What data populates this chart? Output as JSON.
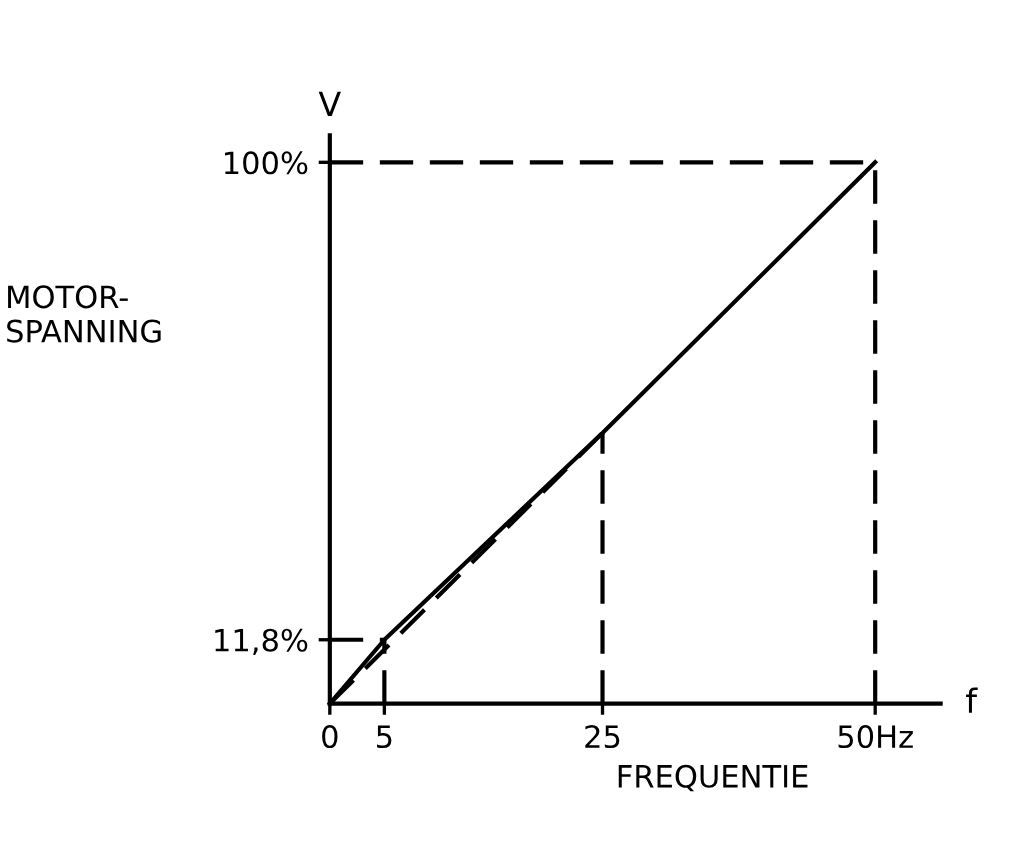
{
  "chart_data": {
    "type": "line",
    "xlabel": "f",
    "ylabel": "V",
    "annotations": [
      "MOTOR-\nSPANNING",
      "FREQUENTIE"
    ],
    "x": [
      0,
      5,
      25,
      50
    ],
    "series": [
      {
        "color": "#000000",
        "values": [
          0,
          11.8,
          50,
          100
        ],
        "line_style": "solid"
      },
      {
        "x": [
          0,
          25
        ],
        "color": "#000000",
        "values": [
          0,
          50
        ],
        "line_style": "dashed"
      },
      {
        "x": [
          5,
          5
        ],
        "color": "#000000",
        "values": [
          0,
          11.8
        ],
        "line_style": "dashed"
      },
      {
        "x": [
          0,
          5
        ],
        "color": "#000000",
        "values": [
          11.8,
          11.8
        ],
        "line_style": "dashed"
      },
      {
        "x": [
          25,
          25
        ],
        "color": "#000000",
        "values": [
          0,
          50
        ],
        "line_style": "dashed"
      },
      {
        "x": [
          0,
          50
        ],
        "color": "#000000",
        "values": [
          100,
          100
        ],
        "line_style": "dashed"
      },
      {
        "x": [
          50,
          50
        ],
        "color": "#000000",
        "values": [
          0,
          100
        ],
        "line_style": "dashed"
      }
    ],
    "xlim": [
      0,
      56
    ],
    "ylim": [
      0,
      105
    ],
    "xticks": [
      0,
      5,
      25,
      {
        "value": 50,
        "label": "50Hz"
      }
    ],
    "yticks": [
      {
        "value": 11.8,
        "label": "11,8%"
      },
      {
        "value": 100,
        "label": "100%"
      }
    ],
    "grid": false,
    "legend": false,
    "marker": "none"
  }
}
